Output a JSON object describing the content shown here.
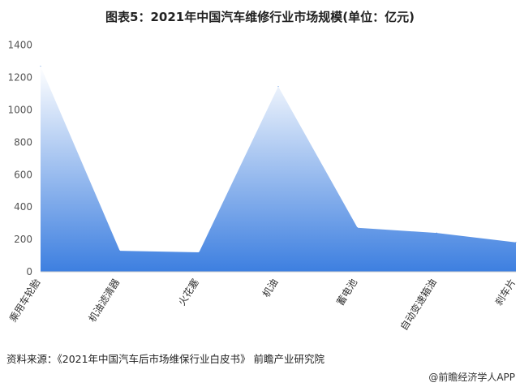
{
  "chart_data": {
    "type": "area",
    "title": "图表5：2021年中国汽车维修行业市场规模(单位：亿元)",
    "categories": [
      "乘用车轮胎",
      "机油滤清器",
      "火花塞",
      "机油",
      "蓄电池",
      "自动变速箱油",
      "刹车片"
    ],
    "values": [
      1270,
      130,
      120,
      1145,
      272,
      240,
      182
    ],
    "ylim": [
      0,
      1400
    ],
    "yticks": [
      0,
      200,
      400,
      600,
      800,
      1000,
      1200,
      1400
    ],
    "grid": false,
    "color_top": "#ffffff",
    "color_bottom": "#3d7fe0"
  },
  "source": "资料来源：《2021年中国汽车后市场维保行业白皮书》 前瞻产业研究院",
  "credit": "@前瞻经济学人APP"
}
